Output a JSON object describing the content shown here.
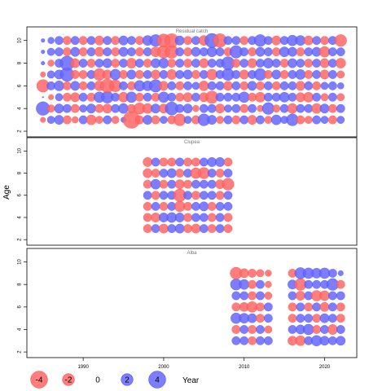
{
  "chart_data": {
    "type": "scatter",
    "ylabel": "Age",
    "xlabel": "Year",
    "xlim": [
      1983,
      2024
    ],
    "x_ticks": [
      1990,
      2000,
      2010,
      2020
    ],
    "y_ticks": [
      2,
      4,
      6,
      8,
      10
    ],
    "ylim": [
      1.5,
      11.2
    ],
    "colors": {
      "negative": "#ff6666",
      "positive": "#6666ff"
    },
    "legend": {
      "placement": "bottom-left",
      "items": [
        {
          "label": "-4",
          "value": -4
        },
        {
          "label": "-2",
          "value": -2
        },
        {
          "label": "0",
          "value": 0
        },
        {
          "label": "2",
          "value": 2
        },
        {
          "label": "4",
          "value": 4
        }
      ]
    },
    "panels": [
      {
        "title": "Residual catch",
        "x": [
          1985,
          1986,
          1987,
          1988,
          1989,
          1990,
          1991,
          1992,
          1993,
          1994,
          1995,
          1996,
          1997,
          1998,
          1999,
          2000,
          2001,
          2002,
          2003,
          2004,
          2005,
          2006,
          2007,
          2008,
          2009,
          2010,
          2011,
          2012,
          2013,
          2014,
          2015,
          2016,
          2017,
          2018,
          2019,
          2020,
          2021,
          2022
        ],
        "ages": [
          3,
          4,
          5,
          6,
          7,
          8,
          9,
          10
        ],
        "values": [
          [
            -0.4,
            0.8,
            1.2,
            -1.0,
            -0.6,
            1.0,
            -1.4,
            -0.8,
            1.0,
            -0.8,
            0.4,
            -4.0,
            -1.0,
            1.2,
            -1.0,
            0.8,
            -1.0,
            -2.0,
            0.8,
            -1.0,
            2.0,
            1.2,
            -0.8,
            1.0,
            -1.0,
            1.0,
            -1.2,
            1.0,
            -0.8,
            1.4,
            0.8,
            2.0,
            -1.0,
            -0.8,
            1.0,
            0.8,
            -1.0,
            0.8
          ],
          [
            2.6,
            -0.8,
            1.2,
            1.0,
            -1.0,
            0.8,
            1.2,
            -1.0,
            -1.2,
            1.0,
            1.4,
            -1.0,
            -1.8,
            -1.4,
            1.2,
            -1.2,
            2.4,
            1.0,
            1.2,
            -0.6,
            1.0,
            1.0,
            -1.2,
            0.8,
            1.0,
            -1.0,
            1.0,
            -0.6,
            2.0,
            -0.8,
            1.0,
            -1.4,
            1.0,
            1.0,
            -1.4,
            1.2,
            -1.0,
            1.0
          ],
          [
            0.0,
            -0.4,
            0.8,
            -1.0,
            -1.2,
            1.0,
            -1.0,
            1.6,
            2.0,
            1.0,
            -1.4,
            1.6,
            -1.0,
            1.0,
            -1.0,
            1.6,
            1.0,
            -1.0,
            -1.2,
            1.0,
            -1.2,
            -2.2,
            1.0,
            1.0,
            1.0,
            1.6,
            -1.0,
            -1.4,
            1.0,
            1.0,
            1.4,
            1.0,
            -1.2,
            -1.4,
            1.0,
            -0.8,
            1.0,
            -0.8
          ],
          [
            -2.2,
            1.0,
            1.4,
            -1.0,
            1.2,
            -1.0,
            1.0,
            -1.4,
            -2.6,
            -2.0,
            1.0,
            -1.0,
            1.6,
            1.4,
            2.2,
            -1.2,
            1.0,
            -1.0,
            1.0,
            0.8,
            -1.4,
            1.0,
            1.0,
            -1.2,
            1.0,
            -1.0,
            1.2,
            -1.0,
            1.0,
            -1.0,
            1.0,
            1.0,
            -1.2,
            1.0,
            -1.0,
            0.8,
            1.0,
            0.6
          ],
          [
            -0.4,
            0.8,
            1.2,
            2.6,
            -1.0,
            -1.0,
            1.0,
            -2.0,
            -1.2,
            1.6,
            -1.0,
            1.2,
            -1.0,
            1.0,
            -1.2,
            1.0,
            -1.4,
            1.0,
            1.2,
            -1.0,
            1.0,
            -1.6,
            1.0,
            2.0,
            1.0,
            -1.2,
            1.0,
            2.0,
            -1.0,
            1.2,
            -1.0,
            1.0,
            1.4,
            -1.0,
            1.0,
            -1.2,
            1.0,
            -0.8
          ],
          [
            0.2,
            -0.6,
            1.0,
            2.8,
            -1.2,
            1.0,
            -1.0,
            1.0,
            1.2,
            -1.0,
            1.0,
            -1.4,
            1.0,
            -1.0,
            1.2,
            1.4,
            -1.0,
            1.0,
            -1.0,
            1.0,
            -1.2,
            1.0,
            1.0,
            2.4,
            -1.0,
            1.0,
            -1.2,
            1.0,
            1.4,
            1.0,
            -1.0,
            1.2,
            1.0,
            -1.0,
            1.0,
            -1.2,
            1.0,
            -1.4
          ],
          [
            0.2,
            0.8,
            1.0,
            -1.0,
            1.2,
            -1.0,
            1.0,
            -1.2,
            1.0,
            -1.0,
            1.2,
            1.0,
            -1.0,
            1.0,
            -1.4,
            -2.2,
            -2.4,
            1.0,
            -1.0,
            1.2,
            1.0,
            1.4,
            1.0,
            -1.0,
            2.2,
            1.0,
            -1.0,
            1.2,
            1.0,
            -1.0,
            1.4,
            1.2,
            -1.0,
            1.0,
            1.2,
            -1.6,
            1.0,
            1.0
          ],
          [
            0.2,
            0.6,
            1.0,
            -1.0,
            1.0,
            -1.0,
            1.0,
            -1.2,
            1.0,
            -1.0,
            1.2,
            1.0,
            -1.0,
            1.4,
            2.0,
            -2.4,
            -2.6,
            1.2,
            -1.0,
            1.0,
            -1.4,
            2.8,
            -2.6,
            1.0,
            1.0,
            -1.0,
            1.0,
            2.0,
            1.0,
            -1.2,
            1.0,
            1.6,
            1.4,
            -1.2,
            1.0,
            -1.0,
            1.0,
            -2.0
          ]
        ]
      },
      {
        "title": "Clupea",
        "x": [
          1998,
          1999,
          2000,
          2001,
          2002,
          2003,
          2004,
          2005,
          2006,
          2007,
          2008
        ],
        "ages": [
          3,
          4,
          5,
          6,
          7,
          8,
          9
        ],
        "values": [
          [
            -1.0,
            1.0,
            -1.2,
            1.0,
            1.2,
            -1.0,
            -1.2,
            1.0,
            -1.0,
            1.0,
            -1.0
          ],
          [
            -1.0,
            -1.2,
            1.2,
            1.4,
            1.2,
            -1.0,
            1.0,
            1.0,
            -1.0,
            1.0,
            -1.0
          ],
          [
            -1.0,
            1.0,
            -1.0,
            1.0,
            -1.6,
            -1.0,
            1.0,
            1.2,
            -1.0,
            1.0,
            1.0
          ],
          [
            1.0,
            -1.0,
            1.0,
            1.0,
            -2.2,
            1.0,
            -1.0,
            1.0,
            1.0,
            -1.0,
            1.0
          ],
          [
            -1.0,
            1.4,
            -1.0,
            1.0,
            -1.2,
            -1.0,
            1.0,
            1.0,
            1.0,
            -1.2,
            -2.0
          ],
          [
            -1.2,
            -1.0,
            1.0,
            1.2,
            -1.0,
            1.0,
            -1.6,
            -1.8,
            1.0,
            -1.0,
            1.0
          ],
          [
            -1.2,
            1.0,
            -1.0,
            -1.0,
            1.0,
            -1.0,
            -1.0,
            1.0,
            1.2,
            1.2,
            -1.0
          ]
        ]
      },
      {
        "title": "Alba",
        "x": [
          2009,
          2010,
          2011,
          2012,
          2013,
          2016,
          2017,
          2018,
          2019,
          2020,
          2021,
          2022
        ],
        "ages": [
          3,
          4,
          5,
          6,
          7,
          8,
          9
        ],
        "values": [
          [
            1.0,
            1.0,
            -1.0,
            1.0,
            1.0,
            -1.2,
            -1.4,
            1.0,
            1.6,
            1.2,
            1.0,
            1.2
          ],
          [
            -1.0,
            1.0,
            -1.0,
            1.0,
            -0.8,
            1.0,
            1.2,
            1.6,
            -1.0,
            1.0,
            -1.4,
            1.0
          ],
          [
            1.6,
            1.4,
            1.2,
            -1.0,
            1.0,
            -1.0,
            1.0,
            1.0,
            -1.0,
            1.2,
            1.0,
            -1.0
          ],
          [
            -1.0,
            -1.2,
            -1.6,
            -1.0,
            1.0,
            -1.0,
            1.0,
            -1.0,
            1.0,
            -1.2,
            1.0,
            -1.0
          ],
          [
            1.0,
            1.0,
            -1.0,
            1.0,
            -0.8,
            1.0,
            -1.2,
            1.0,
            -1.6,
            -1.4,
            1.0,
            1.0
          ],
          [
            1.8,
            1.4,
            -1.0,
            1.0,
            -0.6,
            1.2,
            -2.0,
            1.0,
            1.0,
            1.0,
            2.0,
            -1.0
          ],
          [
            -2.0,
            -1.2,
            -1.0,
            -0.8,
            -0.6,
            -1.0,
            1.8,
            1.6,
            1.4,
            1.6,
            1.0,
            0.4
          ]
        ]
      }
    ]
  }
}
